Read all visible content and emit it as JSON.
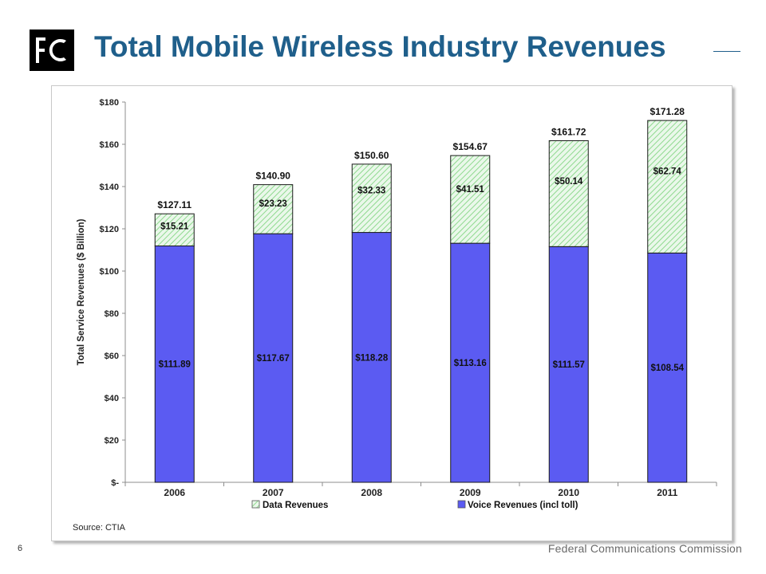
{
  "header": {
    "logo_text": "FCC",
    "title": "Total Mobile Wireless Industry Revenues"
  },
  "footer": {
    "slide_number": "6",
    "organization": "Federal Communications Commission"
  },
  "colors": {
    "title": "#1f5f8b",
    "voice": "#5b5bf2",
    "data_stripe": "#8fd98f",
    "data_fill": "#eaf8ea"
  },
  "chart_data": {
    "type": "bar",
    "stacked": true,
    "categories": [
      "2006",
      "2007",
      "2008",
      "2009",
      "2010",
      "2011"
    ],
    "series": [
      {
        "name": "Voice Revenues (incl toll)",
        "values": [
          111.89,
          117.67,
          118.28,
          113.16,
          111.57,
          108.54
        ],
        "labels": [
          "$111.89",
          "$117.67",
          "$118.28",
          "$113.16",
          "$111.57",
          "$108.54"
        ]
      },
      {
        "name": "Data Revenues",
        "values": [
          15.21,
          23.23,
          32.33,
          41.51,
          50.14,
          62.74
        ],
        "labels": [
          "$15.21",
          "$23.23",
          "$32.33",
          "$41.51",
          "$50.14",
          "$62.74"
        ]
      }
    ],
    "totals": [
      127.11,
      140.9,
      150.6,
      154.67,
      161.72,
      171.28
    ],
    "total_labels": [
      "$127.11",
      "$140.90",
      "$150.60",
      "$154.67",
      "$161.72",
      "$171.28"
    ],
    "ylabel": "Total Service Revenues ($ Billion)",
    "ylim": [
      0,
      180
    ],
    "yticks": [
      0,
      20,
      40,
      60,
      80,
      100,
      120,
      140,
      160,
      180
    ],
    "ytick_labels": [
      "$-",
      "$20",
      "$40",
      "$60",
      "$80",
      "$100",
      "$120",
      "$140",
      "$160",
      "$180"
    ],
    "grid": false,
    "legend_position": "bottom",
    "legend": [
      "Data Revenues",
      "Voice Revenues (incl toll)"
    ],
    "source": "Source: CTIA"
  }
}
